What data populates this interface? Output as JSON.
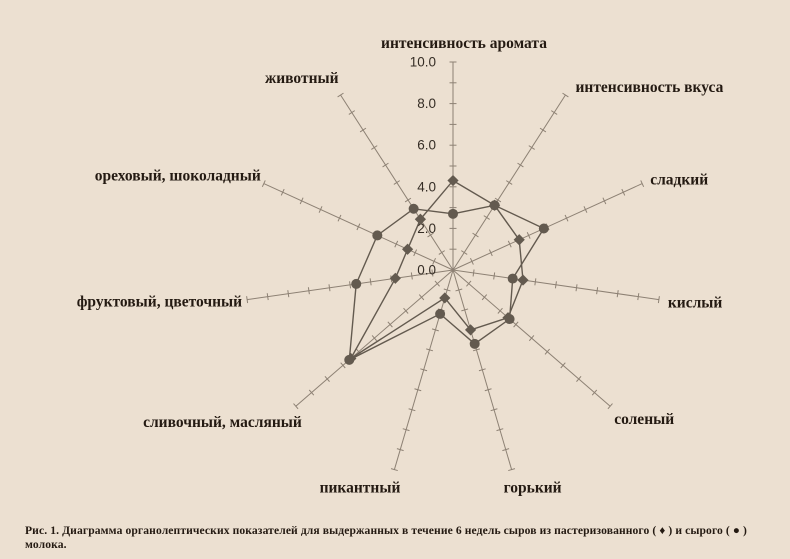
{
  "figure": {
    "caption": "Рис. 1. Диаграмма органолептических показателей для выдержанных в течение 6 недель сыров из пастеризованного ( ♦ )  и сырого ( ● ) молока."
  },
  "chart_data": {
    "type": "radar",
    "title": "",
    "categories": [
      "интенсивность аромата",
      "интенсивность вкуса",
      "сладкий",
      "кислый",
      "соленый",
      "горький",
      "пикантный",
      "сливочный, масляный",
      "фруктовый, цветочный",
      "ореховый, шоколадный",
      "животный"
    ],
    "series": [
      {
        "name": "сыры из пастеризованного молока",
        "marker": "diamond",
        "values": [
          4.3,
          3.7,
          3.5,
          3.4,
          3.5,
          3.0,
          1.4,
          6.5,
          2.8,
          2.4,
          2.9
        ]
      },
      {
        "name": "сыры из сырого молока",
        "marker": "circle",
        "values": [
          2.7,
          3.7,
          4.8,
          2.9,
          3.6,
          3.7,
          2.2,
          6.6,
          4.7,
          4.0,
          3.5
        ]
      }
    ],
    "scale": {
      "min": 0,
      "max": 10,
      "tick_step": 1,
      "label_step": 2,
      "tick_labels": [
        "0.0",
        "2.0",
        "4.0",
        "6.0",
        "8.0",
        "10.0"
      ]
    },
    "legend": {
      "position": "in-caption",
      "diamond_glyph": "♦",
      "circle_glyph": "●"
    },
    "layout_hints": {
      "grid": "off",
      "axis_tick_labels_on": "интенсивность аромата axis only"
    },
    "colors": {
      "background": "#ece0d1",
      "axis": "#8d8174",
      "series": "#635a4f",
      "axis_label_text": "#241a12",
      "tick_label_text": "#352d25"
    }
  }
}
